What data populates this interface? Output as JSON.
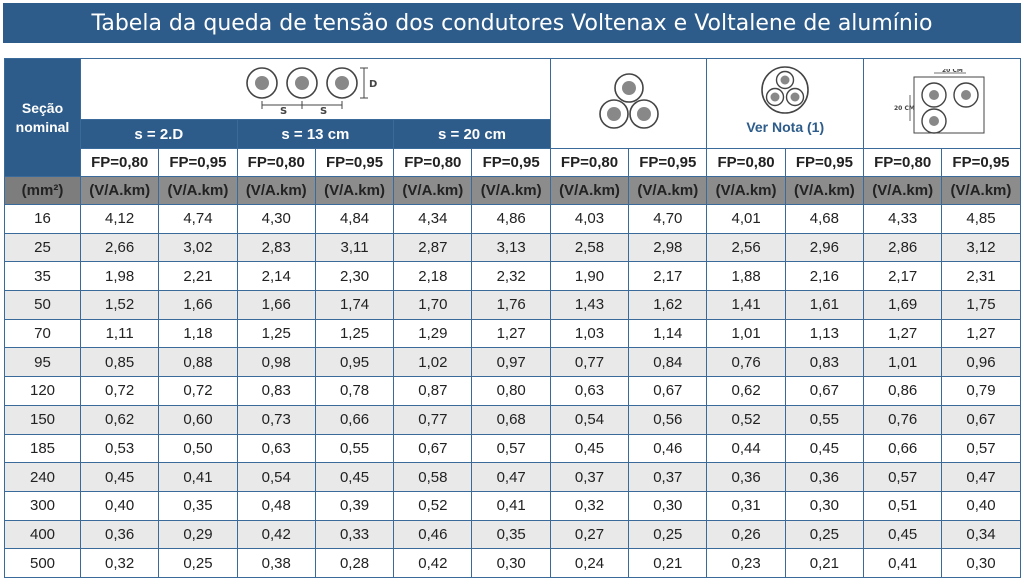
{
  "title": "Tabela da queda de tensão dos condutores Voltenax e Voltalene de alumínio",
  "header": {
    "secao_label": "Seção nominal",
    "s_labels": [
      "s = 2.D",
      "s = 13 cm",
      "s = 20 cm"
    ],
    "ver_nota": "Ver Nota (1)",
    "fp_labels": [
      "FP=0,80",
      "FP=0,95"
    ],
    "unit_first": "(mm²)",
    "unit": "(V/A.km)",
    "diagram_text": {
      "s": "S",
      "d": "D",
      "dim": "20 CM"
    }
  },
  "colors": {
    "header_blue": "#2e5c8a",
    "unit_gray": "#8c8c8c",
    "stripe": "#e9e9e9"
  },
  "rows": [
    {
      "secao": "16",
      "values": [
        "4,12",
        "4,74",
        "4,30",
        "4,84",
        "4,34",
        "4,86",
        "4,03",
        "4,70",
        "4,01",
        "4,68",
        "4,33",
        "4,85"
      ]
    },
    {
      "secao": "25",
      "values": [
        "2,66",
        "3,02",
        "2,83",
        "3,11",
        "2,87",
        "3,13",
        "2,58",
        "2,98",
        "2,56",
        "2,96",
        "2,86",
        "3,12"
      ]
    },
    {
      "secao": "35",
      "values": [
        "1,98",
        "2,21",
        "2,14",
        "2,30",
        "2,18",
        "2,32",
        "1,90",
        "2,17",
        "1,88",
        "2,16",
        "2,17",
        "2,31"
      ]
    },
    {
      "secao": "50",
      "values": [
        "1,52",
        "1,66",
        "1,66",
        "1,74",
        "1,70",
        "1,76",
        "1,43",
        "1,62",
        "1,41",
        "1,61",
        "1,69",
        "1,75"
      ]
    },
    {
      "secao": "70",
      "values": [
        "1,11",
        "1,18",
        "1,25",
        "1,25",
        "1,29",
        "1,27",
        "1,03",
        "1,14",
        "1,01",
        "1,13",
        "1,27",
        "1,27"
      ]
    },
    {
      "secao": "95",
      "values": [
        "0,85",
        "0,88",
        "0,98",
        "0,95",
        "1,02",
        "0,97",
        "0,77",
        "0,84",
        "0,76",
        "0,83",
        "1,01",
        "0,96"
      ]
    },
    {
      "secao": "120",
      "values": [
        "0,72",
        "0,72",
        "0,83",
        "0,78",
        "0,87",
        "0,80",
        "0,63",
        "0,67",
        "0,62",
        "0,67",
        "0,86",
        "0,79"
      ]
    },
    {
      "secao": "150",
      "values": [
        "0,62",
        "0,60",
        "0,73",
        "0,66",
        "0,77",
        "0,68",
        "0,54",
        "0,56",
        "0,52",
        "0,55",
        "0,76",
        "0,67"
      ]
    },
    {
      "secao": "185",
      "values": [
        "0,53",
        "0,50",
        "0,63",
        "0,55",
        "0,67",
        "0,57",
        "0,45",
        "0,46",
        "0,44",
        "0,45",
        "0,66",
        "0,57"
      ]
    },
    {
      "secao": "240",
      "values": [
        "0,45",
        "0,41",
        "0,54",
        "0,45",
        "0,58",
        "0,47",
        "0,37",
        "0,37",
        "0,36",
        "0,36",
        "0,57",
        "0,47"
      ]
    },
    {
      "secao": "300",
      "values": [
        "0,40",
        "0,35",
        "0,48",
        "0,39",
        "0,52",
        "0,41",
        "0,32",
        "0,30",
        "0,31",
        "0,30",
        "0,51",
        "0,40"
      ]
    },
    {
      "secao": "400",
      "values": [
        "0,36",
        "0,29",
        "0,42",
        "0,33",
        "0,46",
        "0,35",
        "0,27",
        "0,25",
        "0,26",
        "0,25",
        "0,45",
        "0,34"
      ]
    },
    {
      "secao": "500",
      "values": [
        "0,32",
        "0,25",
        "0,38",
        "0,28",
        "0,42",
        "0,30",
        "0,24",
        "0,21",
        "0,23",
        "0,21",
        "0,41",
        "0,30"
      ]
    }
  ]
}
